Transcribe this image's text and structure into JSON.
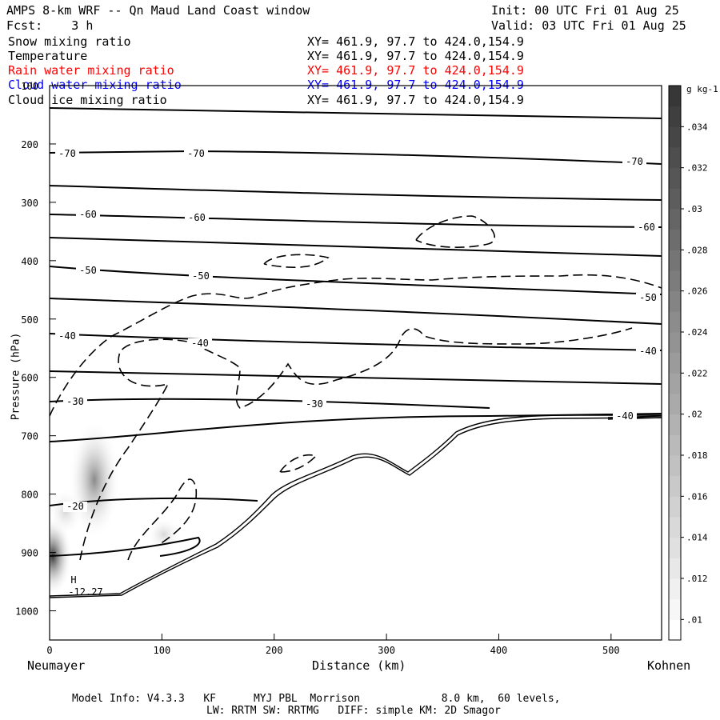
{
  "header": {
    "title": "AMPS 8-km WRF -- Qn Maud Land Coast window",
    "init": "Init: 00 UTC Fri 01 Aug 25",
    "fcst": "Fcst:    3 h",
    "valid": "Valid: 03 UTC Fri 01 Aug 25"
  },
  "legend": [
    {
      "label": "Snow mixing ratio",
      "xy": "XY= 461.9, 97.7 to 424.0,154.9",
      "color": "#000000"
    },
    {
      "label": "Temperature",
      "xy": "XY= 461.9, 97.7 to 424.0,154.9",
      "color": "#000000"
    },
    {
      "label": "Rain water mixing ratio",
      "xy": "XY= 461.9, 97.7 to 424.0,154.9",
      "color": "#ff0000"
    },
    {
      "label": "Cloud water mixing ratio",
      "xy": "XY= 461.9, 97.7 to 424.0,154.9",
      "color": "#0000ff"
    },
    {
      "label": "Cloud ice mixing ratio",
      "xy": "XY= 461.9, 97.7 to 424.0,154.9",
      "color": "#000000"
    }
  ],
  "footer": {
    "line1": "Model Info: V4.3.3   KF      MYJ PBL  Morrison             8.0 km,  60 levels,",
    "line2": "LW: RRTM SW: RRTMG   DIFF: simple KM: 2D Smagor"
  },
  "chart_data": {
    "type": "contour",
    "ylabel": "Pressure (hPa)",
    "xlabel": "Distance (km)",
    "x_start_label": "Neumayer",
    "x_end_label": "Kohnen",
    "x_ticks": [
      0,
      100,
      200,
      300,
      400,
      500
    ],
    "y_ticks": [
      100,
      200,
      300,
      400,
      500,
      600,
      700,
      800,
      900,
      1000
    ],
    "xlim": [
      0,
      545
    ],
    "ylim": [
      1050,
      100
    ],
    "temperature_labels": [
      "-70",
      "-70",
      "-70",
      "-60",
      "-60",
      "-60",
      "-50",
      "-50",
      "-50",
      "-40",
      "-40",
      "-40",
      "-30",
      "-30",
      "-40",
      "-20"
    ],
    "min_label": {
      "symbol": "H",
      "value": "-12.27"
    },
    "colorbar": {
      "unit": "g kg-1",
      "ticks": [
        ".01",
        ".012",
        ".014",
        ".016",
        ".018",
        ".02",
        ".022",
        ".024",
        ".026",
        ".028",
        ".03",
        ".032",
        ".034"
      ],
      "min": 0.009,
      "max": 0.036
    }
  }
}
